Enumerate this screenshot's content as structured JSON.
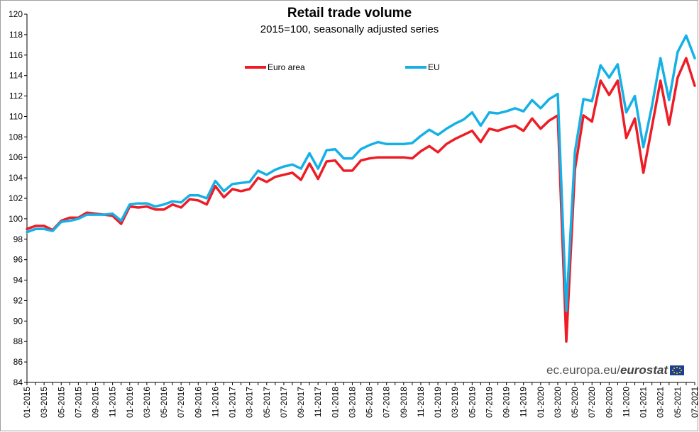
{
  "chart_data": {
    "type": "line",
    "title": "Retail trade volume",
    "subtitle": "2015=100, seasonally adjusted series",
    "xlabel": "",
    "ylabel": "",
    "ylim": [
      84,
      120
    ],
    "ytick_step": 2,
    "grid": false,
    "legend_placement": "top-center",
    "x": [
      "01-2015",
      "02-2015",
      "03-2015",
      "04-2015",
      "05-2015",
      "06-2015",
      "07-2015",
      "08-2015",
      "09-2015",
      "10-2015",
      "11-2015",
      "12-2015",
      "01-2016",
      "02-2016",
      "03-2016",
      "04-2016",
      "05-2016",
      "06-2016",
      "07-2016",
      "08-2016",
      "09-2016",
      "10-2016",
      "11-2016",
      "12-2016",
      "01-2017",
      "02-2017",
      "03-2017",
      "04-2017",
      "05-2017",
      "06-2017",
      "07-2017",
      "08-2017",
      "09-2017",
      "10-2017",
      "11-2017",
      "12-2017",
      "01-2018",
      "02-2018",
      "03-2018",
      "04-2018",
      "05-2018",
      "06-2018",
      "07-2018",
      "08-2018",
      "09-2018",
      "10-2018",
      "11-2018",
      "12-2018",
      "01-2019",
      "02-2019",
      "03-2019",
      "04-2019",
      "05-2019",
      "06-2019",
      "07-2019",
      "08-2019",
      "09-2019",
      "10-2019",
      "11-2019",
      "12-2019",
      "01-2020",
      "02-2020",
      "03-2020",
      "04-2020",
      "05-2020",
      "06-2020",
      "07-2020",
      "08-2020",
      "09-2020",
      "10-2020",
      "11-2020",
      "12-2020",
      "01-2021",
      "02-2021",
      "03-2021",
      "04-2021",
      "05-2021",
      "06-2021",
      "07-2021"
    ],
    "x_tick_labels": [
      "01-2015",
      "03-2015",
      "05-2015",
      "07-2015",
      "09-2015",
      "11-2015",
      "01-2016",
      "03-2016",
      "05-2016",
      "07-2016",
      "09-2016",
      "11-2016",
      "01-2017",
      "03-2017",
      "05-2017",
      "07-2017",
      "09-2017",
      "11-2017",
      "01-2018",
      "03-2018",
      "05-2018",
      "07-2018",
      "09-2018",
      "11-2018",
      "01-2019",
      "03-2019",
      "05-2019",
      "07-2019",
      "09-2019",
      "11-2019",
      "01-2020",
      "03-2020",
      "05-2020",
      "07-2020",
      "09-2020",
      "11-2020",
      "01-2021",
      "03-2021",
      "05-2021",
      "07-2021"
    ],
    "series": [
      {
        "name": "Euro area",
        "color": "#ee1c25",
        "values": [
          99.0,
          99.3,
          99.3,
          98.9,
          99.8,
          100.1,
          100.1,
          100.6,
          100.5,
          100.4,
          100.3,
          99.5,
          101.2,
          101.1,
          101.2,
          100.9,
          100.9,
          101.4,
          101.1,
          101.9,
          101.8,
          101.4,
          103.2,
          102.1,
          102.9,
          102.7,
          102.9,
          104.0,
          103.6,
          104.1,
          104.3,
          104.5,
          103.8,
          105.4,
          103.9,
          105.6,
          105.7,
          104.7,
          104.7,
          105.7,
          105.9,
          106.0,
          106.0,
          106.0,
          106.0,
          105.9,
          106.6,
          107.1,
          106.5,
          107.3,
          107.8,
          108.2,
          108.6,
          107.5,
          108.8,
          108.6,
          108.9,
          109.1,
          108.6,
          109.8,
          108.8,
          109.6,
          110.1,
          88.0,
          104.8,
          110.1,
          109.5,
          113.5,
          112.1,
          113.5,
          107.9,
          109.8,
          104.5,
          109.0,
          113.5,
          109.2,
          113.8,
          115.7,
          113.0
        ]
      },
      {
        "name": "EU",
        "color": "#15b1e6",
        "values": [
          98.7,
          99.0,
          99.0,
          98.8,
          99.7,
          99.8,
          100.0,
          100.4,
          100.4,
          100.4,
          100.5,
          99.8,
          101.4,
          101.5,
          101.5,
          101.2,
          101.4,
          101.7,
          101.6,
          102.3,
          102.3,
          102.0,
          103.7,
          102.7,
          103.4,
          103.5,
          103.6,
          104.7,
          104.3,
          104.8,
          105.1,
          105.3,
          104.9,
          106.4,
          104.9,
          106.7,
          106.8,
          105.9,
          105.9,
          106.8,
          107.2,
          107.5,
          107.3,
          107.3,
          107.3,
          107.4,
          108.1,
          108.7,
          108.2,
          108.8,
          109.3,
          109.7,
          110.4,
          109.1,
          110.4,
          110.3,
          110.5,
          110.8,
          110.5,
          111.6,
          110.8,
          111.7,
          112.2,
          91.0,
          106.5,
          111.7,
          111.5,
          115.0,
          113.8,
          115.1,
          110.4,
          112.0,
          107.0,
          111.0,
          115.7,
          111.6,
          116.3,
          117.9,
          115.7
        ]
      }
    ]
  },
  "source": {
    "domain": "ec.europa.eu/",
    "brand": "eurostat"
  }
}
